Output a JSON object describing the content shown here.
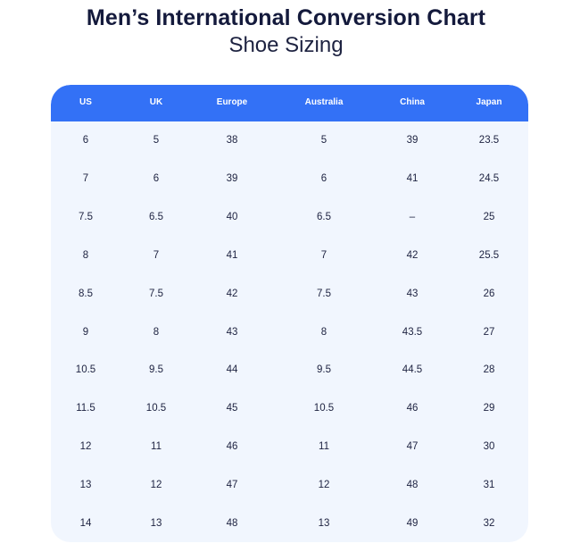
{
  "header": {
    "title": "Men’s International Conversion Chart",
    "subtitle": "Shoe Sizing"
  },
  "table": {
    "columns": [
      "US",
      "UK",
      "Europe",
      "Australia",
      "China",
      "Japan"
    ],
    "rows": [
      [
        "6",
        "5",
        "38",
        "5",
        "39",
        "23.5"
      ],
      [
        "7",
        "6",
        "39",
        "6",
        "41",
        "24.5"
      ],
      [
        "7.5",
        "6.5",
        "40",
        "6.5",
        "–",
        "25"
      ],
      [
        "8",
        "7",
        "41",
        "7",
        "42",
        "25.5"
      ],
      [
        "8.5",
        "7.5",
        "42",
        "7.5",
        "43",
        "26"
      ],
      [
        "9",
        "8",
        "43",
        "8",
        "43.5",
        "27"
      ],
      [
        "10.5",
        "9.5",
        "44",
        "9.5",
        "44.5",
        "28"
      ],
      [
        "11.5",
        "10.5",
        "45",
        "10.5",
        "46",
        "29"
      ],
      [
        "12",
        "11",
        "46",
        "11",
        "47",
        "30"
      ],
      [
        "13",
        "12",
        "47",
        "12",
        "48",
        "31"
      ],
      [
        "14",
        "13",
        "48",
        "13",
        "49",
        "32"
      ]
    ]
  },
  "colors": {
    "header_bg": "#3371f6",
    "body_bg": "#f1f6fe",
    "text": "#1d2240"
  }
}
